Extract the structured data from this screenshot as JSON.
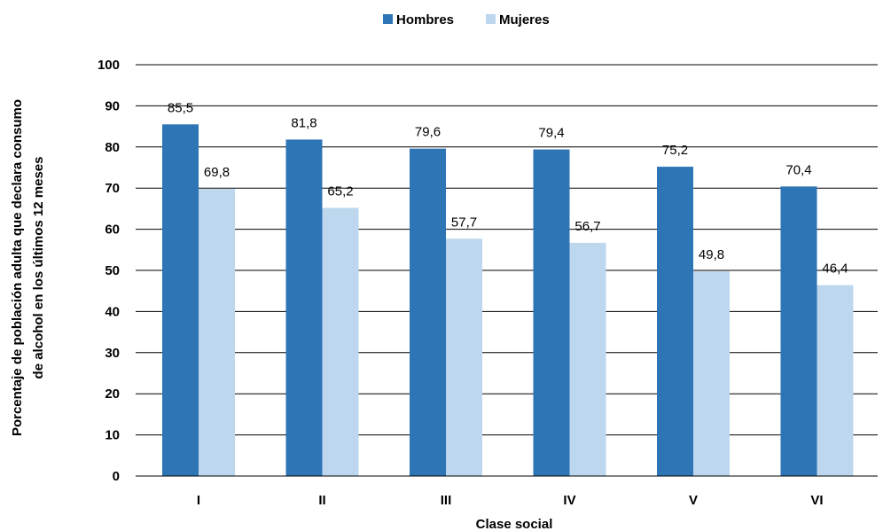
{
  "chart_data": {
    "type": "bar",
    "categories": [
      "I",
      "II",
      "III",
      "IV",
      "V",
      "VI"
    ],
    "series": [
      {
        "name": "Hombres",
        "color": "#2e75b6",
        "values": [
          85.5,
          81.8,
          79.6,
          79.4,
          75.2,
          70.4
        ],
        "labels": [
          "85,5",
          "81,8",
          "79,6",
          "79,4",
          "75,2",
          "70,4"
        ]
      },
      {
        "name": "Mujeres",
        "color": "#bdd7ee",
        "values": [
          69.8,
          65.2,
          57.7,
          56.7,
          49.8,
          46.4
        ],
        "labels": [
          "69,8",
          "65,2",
          "57,7",
          "56,7",
          "49,8",
          "46,4"
        ]
      }
    ],
    "xlabel": "Clase social",
    "ylabel_lines": [
      "Porcentaje de población adulta  que declara consumo",
      "de alcohol en los últimos 12 meses"
    ],
    "ylim": [
      0,
      100
    ],
    "yticks": [
      "0",
      "10",
      "20",
      "30",
      "40",
      "50",
      "60",
      "70",
      "80",
      "90",
      "100"
    ],
    "grid": true,
    "legend_position": "top"
  }
}
